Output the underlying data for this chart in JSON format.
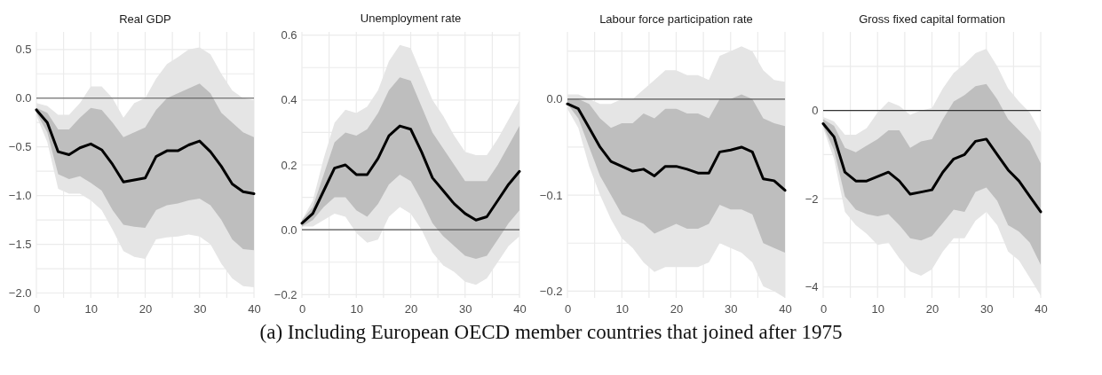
{
  "chart_data": [
    {
      "type": "line",
      "title": "Real GDP",
      "x": [
        0,
        2,
        4,
        6,
        8,
        10,
        12,
        14,
        16,
        18,
        20,
        22,
        24,
        26,
        28,
        30,
        32,
        34,
        36,
        38,
        40
      ],
      "xlim": [
        0,
        40
      ],
      "xticks": [
        0,
        {
          "value": 5,
          "label": null
        },
        10,
        {
          "value": 15,
          "label": null
        },
        20,
        {
          "value": 25,
          "label": null
        },
        30,
        {
          "value": 35,
          "label": null
        },
        40
      ],
      "ylim": [
        -2.05,
        0.68
      ],
      "yticks": [
        {
          "value": -2,
          "label": "−2.0"
        },
        {
          "value": -1.75,
          "label": null
        },
        {
          "value": -1.5,
          "label": "−1.5"
        },
        {
          "value": -1.25,
          "label": null
        },
        {
          "value": -1,
          "label": "−1.0"
        },
        {
          "value": -0.75,
          "label": null
        },
        {
          "value": -0.5,
          "label": "−0.5"
        },
        {
          "value": -0.25,
          "label": null
        },
        {
          "value": 0,
          "label": "0.0"
        },
        {
          "value": 0.25,
          "label": null
        },
        0.5
      ],
      "grid": true,
      "ref_lines": [
        {
          "axis": "y",
          "value": 0,
          "color": "#555555"
        }
      ],
      "series": [
        {
          "color": "#e5e5e5",
          "values": [
            null,
            null,
            null,
            null,
            null,
            null,
            null,
            null,
            null,
            null,
            null,
            null,
            null,
            null,
            null,
            null,
            null,
            null,
            null,
            null,
            null
          ],
          "lower": [
            -0.18,
            -0.45,
            -0.93,
            -0.98,
            -0.98,
            -1.05,
            -1.15,
            -1.35,
            -1.57,
            -1.63,
            -1.65,
            -1.45,
            -1.43,
            -1.42,
            -1.4,
            -1.42,
            -1.5,
            -1.7,
            -1.85,
            -1.93,
            -1.94
          ],
          "upper": [
            -0.05,
            -0.08,
            -0.17,
            -0.17,
            -0.05,
            0.12,
            0.12,
            0,
            -0.2,
            -0.05,
            0,
            0.2,
            0.35,
            0.42,
            0.5,
            0.52,
            0.45,
            0.25,
            0.08,
            0,
            -0.02
          ]
        },
        {
          "color": "#bebebe",
          "values": [
            null,
            null,
            null,
            null,
            null,
            null,
            null,
            null,
            null,
            null,
            null,
            null,
            null,
            null,
            null,
            null,
            null,
            null,
            null,
            null,
            null
          ],
          "lower": [
            -0.15,
            -0.35,
            -0.78,
            -0.83,
            -0.8,
            -0.87,
            -0.95,
            -1.15,
            -1.3,
            -1.32,
            -1.33,
            -1.15,
            -1.1,
            -1.08,
            -1.05,
            -1.03,
            -1.1,
            -1.25,
            -1.45,
            -1.55,
            -1.56
          ],
          "upper": [
            -0.1,
            -0.15,
            -0.32,
            -0.32,
            -0.2,
            -0.1,
            -0.12,
            -0.25,
            -0.4,
            -0.35,
            -0.3,
            -0.12,
            0,
            0.05,
            0.1,
            0.15,
            0.05,
            -0.15,
            -0.25,
            -0.35,
            -0.4
          ]
        },
        {
          "color": "#000000",
          "values": [
            -0.12,
            -0.25,
            -0.55,
            -0.58,
            -0.51,
            -0.47,
            -0.53,
            -0.68,
            -0.86,
            -0.84,
            -0.82,
            -0.6,
            -0.54,
            -0.54,
            -0.48,
            -0.44,
            -0.55,
            -0.7,
            -0.88,
            -0.96,
            -0.98
          ]
        }
      ],
      "annotations": [
        "(a) Including European OECD member countries that joined after 1975"
      ]
    },
    {
      "type": "line",
      "title": "Unemployment rate",
      "x": [
        0,
        2,
        4,
        6,
        8,
        10,
        12,
        14,
        16,
        18,
        20,
        22,
        24,
        26,
        28,
        30,
        32,
        34,
        36,
        38,
        40
      ],
      "xlim": [
        0,
        40
      ],
      "xticks": [
        0,
        {
          "value": 5,
          "label": null
        },
        10,
        {
          "value": 15,
          "label": null
        },
        20,
        {
          "value": 25,
          "label": null
        },
        30,
        {
          "value": 35,
          "label": null
        },
        40
      ],
      "ylim": [
        -0.21,
        0.61
      ],
      "yticks": [
        {
          "value": -0.2,
          "label": "−0.2"
        },
        {
          "value": -0.1,
          "label": null
        },
        {
          "value": 0,
          "label": "0.0"
        },
        {
          "value": 0.1,
          "label": null
        },
        0.2,
        {
          "value": 0.3,
          "label": null
        },
        0.4,
        {
          "value": 0.5,
          "label": null
        },
        0.6
      ],
      "grid": true,
      "ref_lines": [
        {
          "axis": "y",
          "value": 0,
          "color": "#555555"
        }
      ],
      "series": [
        {
          "color": "#e5e5e5",
          "values": [
            null,
            null,
            null,
            null,
            null,
            null,
            null,
            null,
            null,
            null,
            null,
            null,
            null,
            null,
            null,
            null,
            null,
            null,
            null,
            null,
            null
          ],
          "lower": [
            0.01,
            0.01,
            0.03,
            0.05,
            0.04,
            -0.01,
            -0.04,
            -0.03,
            0.04,
            0.07,
            0.05,
            0,
            -0.07,
            -0.11,
            -0.13,
            -0.16,
            -0.17,
            -0.15,
            -0.1,
            -0.05,
            -0.02
          ],
          "upper": [
            0.03,
            0.09,
            0.22,
            0.33,
            0.37,
            0.36,
            0.38,
            0.43,
            0.52,
            0.57,
            0.56,
            0.48,
            0.4,
            0.35,
            0.29,
            0.24,
            0.23,
            0.23,
            0.28,
            0.34,
            0.4
          ]
        },
        {
          "color": "#000000",
          "values": [
            0.02,
            0.05,
            0.12,
            0.19,
            0.2,
            0.17,
            0.17,
            0.22,
            0.29,
            0.32,
            0.31,
            0.24,
            0.16,
            0.12,
            0.08,
            0.05,
            0.03,
            0.04,
            0.09,
            0.14,
            0.18
          ]
        },
        {
          "color": "#bebebe",
          "values": [
            null,
            null,
            null,
            null,
            null,
            null,
            null,
            null,
            null,
            null,
            null,
            null,
            null,
            null,
            null,
            null,
            null,
            null,
            null,
            null,
            null
          ],
          "lower": [
            0.01,
            0.03,
            0.07,
            0.1,
            0.1,
            0.06,
            0.04,
            0.08,
            0.14,
            0.17,
            0.15,
            0.09,
            0.02,
            -0.02,
            -0.05,
            -0.08,
            -0.09,
            -0.08,
            -0.03,
            0.02,
            0.06
          ],
          "upper": [
            0.03,
            0.07,
            0.17,
            0.27,
            0.3,
            0.29,
            0.31,
            0.36,
            0.43,
            0.47,
            0.46,
            0.38,
            0.3,
            0.25,
            0.2,
            0.15,
            0.15,
            0.15,
            0.2,
            0.26,
            0.32
          ]
        }
      ]
    },
    {
      "type": "line",
      "title": "Labour force participation rate",
      "x": [
        0,
        2,
        4,
        6,
        8,
        10,
        12,
        14,
        16,
        18,
        20,
        22,
        24,
        26,
        28,
        30,
        32,
        34,
        36,
        38,
        40
      ],
      "xlim": [
        0,
        40
      ],
      "xticks": [
        0,
        {
          "value": 5,
          "label": null
        },
        10,
        {
          "value": 15,
          "label": null
        },
        20,
        {
          "value": 25,
          "label": null
        },
        30,
        {
          "value": 35,
          "label": null
        },
        40
      ],
      "ylim": [
        -0.207,
        0.07
      ],
      "yticks": [
        {
          "value": -0.2,
          "label": "−0.2"
        },
        {
          "value": -0.15,
          "label": null
        },
        {
          "value": -0.1,
          "label": "−0.1"
        },
        {
          "value": -0.05,
          "label": null
        },
        {
          "value": 0,
          "label": "0.0"
        },
        {
          "value": 0.05,
          "label": null
        }
      ],
      "grid": true,
      "ref_lines": [
        {
          "axis": "y",
          "value": 0,
          "color": "#555555"
        }
      ],
      "series": [
        {
          "color": "#e5e5e5",
          "values": [
            null,
            null,
            null,
            null,
            null,
            null,
            null,
            null,
            null,
            null,
            null,
            null,
            null,
            null,
            null,
            null,
            null,
            null,
            null,
            null,
            null
          ],
          "lower": [
            -0.01,
            -0.03,
            -0.07,
            -0.1,
            -0.125,
            -0.145,
            -0.155,
            -0.17,
            -0.18,
            -0.175,
            -0.175,
            -0.175,
            -0.175,
            -0.17,
            -0.15,
            -0.155,
            -0.16,
            -0.17,
            -0.195,
            -0.2,
            -0.207
          ],
          "upper": [
            0.005,
            0.005,
            0,
            -0.005,
            -0.005,
            0,
            0,
            0.01,
            0.02,
            0.03,
            0.03,
            0.025,
            0.025,
            0.02,
            0.045,
            0.05,
            0.055,
            0.05,
            0.03,
            0.02,
            0.018
          ]
        },
        {
          "color": "#000000",
          "values": [
            -0.005,
            -0.01,
            -0.03,
            -0.05,
            -0.065,
            -0.07,
            -0.075,
            -0.073,
            -0.08,
            -0.07,
            -0.07,
            -0.073,
            -0.077,
            -0.077,
            -0.055,
            -0.053,
            -0.05,
            -0.055,
            -0.083,
            -0.085,
            -0.095
          ]
        },
        {
          "color": "#bebebe",
          "values": [
            null,
            null,
            null,
            null,
            null,
            null,
            null,
            null,
            null,
            null,
            null,
            null,
            null,
            null,
            null,
            null,
            null,
            null,
            null,
            null,
            null
          ],
          "lower": [
            -0.005,
            -0.02,
            -0.05,
            -0.08,
            -0.1,
            -0.12,
            -0.125,
            -0.13,
            -0.14,
            -0.135,
            -0.13,
            -0.135,
            -0.135,
            -0.13,
            -0.11,
            -0.115,
            -0.115,
            -0.12,
            -0.15,
            -0.155,
            -0.16
          ],
          "upper": [
            0,
            0,
            -0.005,
            -0.02,
            -0.03,
            -0.025,
            -0.025,
            -0.015,
            -0.02,
            -0.01,
            -0.01,
            -0.015,
            -0.015,
            -0.02,
            0,
            0,
            0.005,
            0,
            -0.02,
            -0.025,
            -0.028
          ]
        }
      ]
    },
    {
      "type": "line",
      "title": "Gross fixed capital formation",
      "x": [
        0,
        2,
        4,
        6,
        8,
        10,
        12,
        14,
        16,
        18,
        20,
        22,
        24,
        26,
        28,
        30,
        32,
        34,
        36,
        38,
        40
      ],
      "xlim": [
        0,
        40
      ],
      "xticks": [
        0,
        {
          "value": 5,
          "label": null
        },
        10,
        {
          "value": 15,
          "label": null
        },
        20,
        {
          "value": 25,
          "label": null
        },
        30,
        {
          "value": 35,
          "label": null
        },
        40
      ],
      "ylim": [
        -4.25,
        1.78
      ],
      "yticks": [
        {
          "value": -4,
          "label": "−4"
        },
        {
          "value": -3,
          "label": null
        },
        {
          "value": -2,
          "label": "−2"
        },
        {
          "value": -1,
          "label": null
        },
        0,
        {
          "value": 1,
          "label": null
        }
      ],
      "grid": true,
      "ref_lines": [
        {
          "axis": "y",
          "value": 0,
          "color": "#333333"
        }
      ],
      "series": [
        {
          "color": "#e5e5e5",
          "values": [
            null,
            null,
            null,
            null,
            null,
            null,
            null,
            null,
            null,
            null,
            null,
            null,
            null,
            null,
            null,
            null,
            null,
            null,
            null,
            null,
            null
          ],
          "lower": [
            -0.4,
            -1.1,
            -2.3,
            -2.6,
            -2.8,
            -3.05,
            -3,
            -3.35,
            -3.65,
            -3.75,
            -3.6,
            -3.2,
            -2.9,
            -2.9,
            -2.5,
            -2.3,
            -2.6,
            -3.2,
            -3.4,
            -3.8,
            -4.2
          ],
          "upper": [
            -0.15,
            -0.25,
            -0.55,
            -0.55,
            -0.4,
            -0.05,
            0.2,
            0.1,
            -0.1,
            0,
            0.05,
            0.5,
            0.85,
            1.05,
            1.3,
            1.4,
            1,
            0.5,
            0.2,
            -0.05,
            -0.5
          ]
        },
        {
          "color": "#000000",
          "values": [
            -0.3,
            -0.6,
            -1.4,
            -1.6,
            -1.6,
            -1.5,
            -1.4,
            -1.6,
            -1.9,
            -1.85,
            -1.8,
            -1.4,
            -1.1,
            -1,
            -0.7,
            -0.65,
            -1,
            -1.35,
            -1.6,
            -1.95,
            -2.3
          ]
        },
        {
          "color": "#bebebe",
          "values": [
            null,
            null,
            null,
            null,
            null,
            null,
            null,
            null,
            null,
            null,
            null,
            null,
            null,
            null,
            null,
            null,
            null,
            null,
            null,
            null,
            null
          ],
          "lower": [
            -0.35,
            -0.9,
            -1.95,
            -2.25,
            -2.35,
            -2.4,
            -2.35,
            -2.6,
            -2.9,
            -2.95,
            -2.85,
            -2.55,
            -2.25,
            -2.3,
            -1.85,
            -1.75,
            -2.05,
            -2.6,
            -2.75,
            -3,
            -3.5
          ],
          "upper": [
            -0.2,
            -0.35,
            -0.85,
            -0.95,
            -0.8,
            -0.65,
            -0.45,
            -0.45,
            -0.85,
            -0.7,
            -0.65,
            -0.2,
            0.2,
            0.35,
            0.55,
            0.6,
            0.25,
            -0.2,
            -0.45,
            -0.7,
            -1.2
          ]
        }
      ]
    }
  ]
}
